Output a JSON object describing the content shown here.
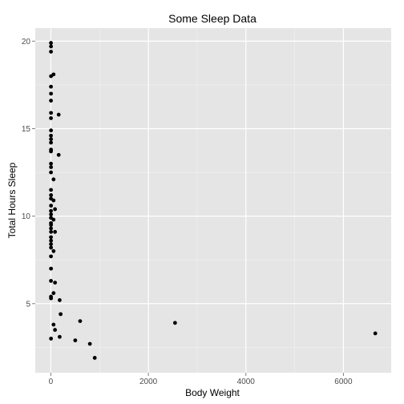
{
  "chart_data": {
    "type": "scatter",
    "title": "Some Sleep Data",
    "xlabel": "Body Weight",
    "ylabel": "Total Hours Sleep",
    "xlim": [
      -320,
      6980
    ],
    "ylim": [
      1.05,
      20.75
    ],
    "x_ticks": [
      0,
      2000,
      4000,
      6000
    ],
    "x_tick_labels": [
      "0",
      "2000",
      "4000",
      "6000"
    ],
    "y_ticks": [
      5,
      10,
      15,
      20
    ],
    "y_tick_labels": [
      "5",
      "10",
      "15",
      "20"
    ],
    "grid": true,
    "legend": "none",
    "colors": {
      "panel": "#e5e5e5",
      "grid_major": "#ffffff",
      "grid_minor": "#f2f2f2",
      "point": "#000000",
      "tick_label": "#4d4d4d"
    },
    "points": [
      {
        "x": 2,
        "y": 19.9
      },
      {
        "x": 3,
        "y": 19.7
      },
      {
        "x": 2,
        "y": 19.4
      },
      {
        "x": 3,
        "y": 18.0
      },
      {
        "x": 55,
        "y": 18.1
      },
      {
        "x": 2,
        "y": 17.4
      },
      {
        "x": 3,
        "y": 17.0
      },
      {
        "x": 2,
        "y": 16.6
      },
      {
        "x": 3,
        "y": 15.9
      },
      {
        "x": 2,
        "y": 15.6
      },
      {
        "x": 160,
        "y": 15.8
      },
      {
        "x": 3,
        "y": 14.9
      },
      {
        "x": 2,
        "y": 14.6
      },
      {
        "x": 3,
        "y": 14.4
      },
      {
        "x": 2,
        "y": 14.2
      },
      {
        "x": 3,
        "y": 13.8
      },
      {
        "x": 2,
        "y": 13.7
      },
      {
        "x": 160,
        "y": 13.5
      },
      {
        "x": 2,
        "y": 13.0
      },
      {
        "x": 3,
        "y": 12.8
      },
      {
        "x": 2,
        "y": 12.5
      },
      {
        "x": 55,
        "y": 12.1
      },
      {
        "x": 2,
        "y": 11.5
      },
      {
        "x": 3,
        "y": 11.2
      },
      {
        "x": 2,
        "y": 11.0
      },
      {
        "x": 55,
        "y": 10.9
      },
      {
        "x": 3,
        "y": 10.6
      },
      {
        "x": 85,
        "y": 10.4
      },
      {
        "x": 2,
        "y": 10.3
      },
      {
        "x": 3,
        "y": 10.1
      },
      {
        "x": 2,
        "y": 9.9
      },
      {
        "x": 55,
        "y": 9.8
      },
      {
        "x": 2,
        "y": 9.6
      },
      {
        "x": 3,
        "y": 9.5
      },
      {
        "x": 2,
        "y": 9.3
      },
      {
        "x": 3,
        "y": 9.1
      },
      {
        "x": 85,
        "y": 9.1
      },
      {
        "x": 2,
        "y": 8.8
      },
      {
        "x": 3,
        "y": 8.6
      },
      {
        "x": 2,
        "y": 8.4
      },
      {
        "x": 3,
        "y": 8.2
      },
      {
        "x": 55,
        "y": 8.0
      },
      {
        "x": 2,
        "y": 7.7
      },
      {
        "x": 3,
        "y": 7.0
      },
      {
        "x": 2,
        "y": 6.3
      },
      {
        "x": 85,
        "y": 6.2
      },
      {
        "x": 55,
        "y": 5.6
      },
      {
        "x": 2,
        "y": 5.4
      },
      {
        "x": 3,
        "y": 5.3
      },
      {
        "x": 180,
        "y": 5.2
      },
      {
        "x": 600,
        "y": 4.0
      },
      {
        "x": 200,
        "y": 4.4
      },
      {
        "x": 55,
        "y": 3.8
      },
      {
        "x": 85,
        "y": 3.5
      },
      {
        "x": 500,
        "y": 2.9
      },
      {
        "x": 180,
        "y": 3.1
      },
      {
        "x": 3,
        "y": 3.0
      },
      {
        "x": 800,
        "y": 2.7
      },
      {
        "x": 900,
        "y": 1.9
      },
      {
        "x": 2547,
        "y": 3.9
      },
      {
        "x": 6654,
        "y": 3.3
      }
    ]
  }
}
